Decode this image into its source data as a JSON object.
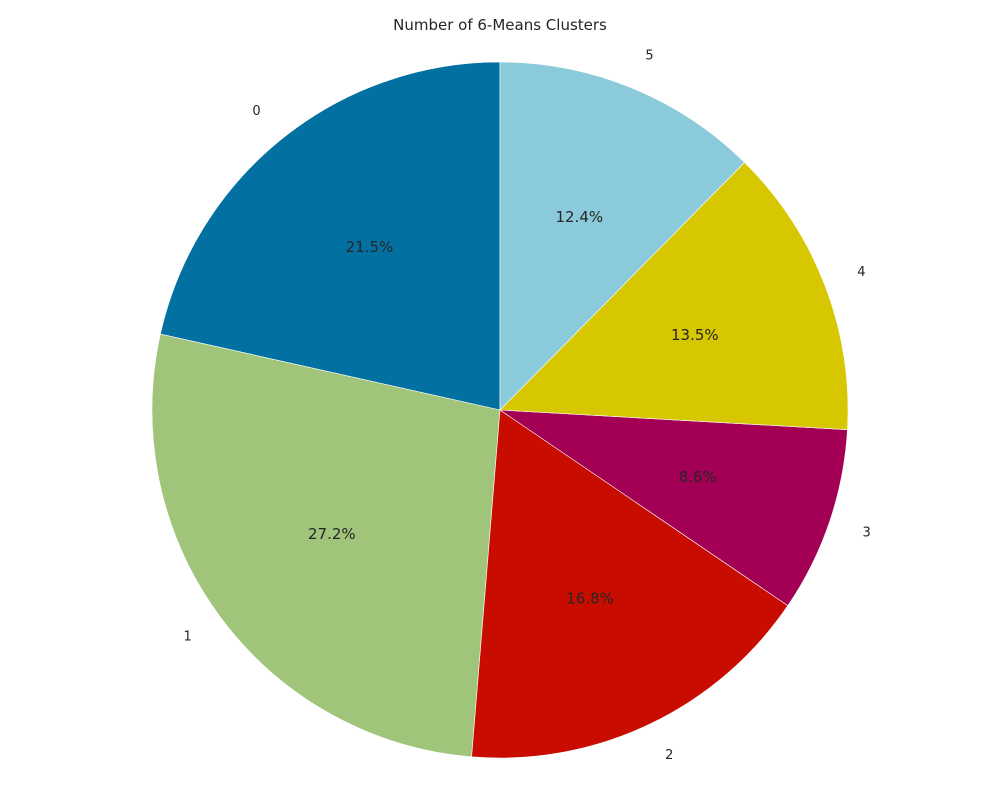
{
  "chart_data": {
    "type": "pie",
    "title": "Number of 6-Means Clusters",
    "categories": [
      "0",
      "1",
      "2",
      "3",
      "4",
      "5"
    ],
    "values": [
      21.5,
      27.2,
      16.8,
      8.6,
      13.5,
      12.4
    ],
    "percent_labels": [
      "21.5%",
      "27.2%",
      "16.8%",
      "8.6%",
      "13.5%",
      "12.4%"
    ],
    "colors": [
      "#0271A2",
      "#A0C47A",
      "#C80D00",
      "#A30055",
      "#D6C700",
      "#8ACADA"
    ],
    "start_angle_deg": 90,
    "direction": "counterclockwise",
    "legend": "none"
  }
}
